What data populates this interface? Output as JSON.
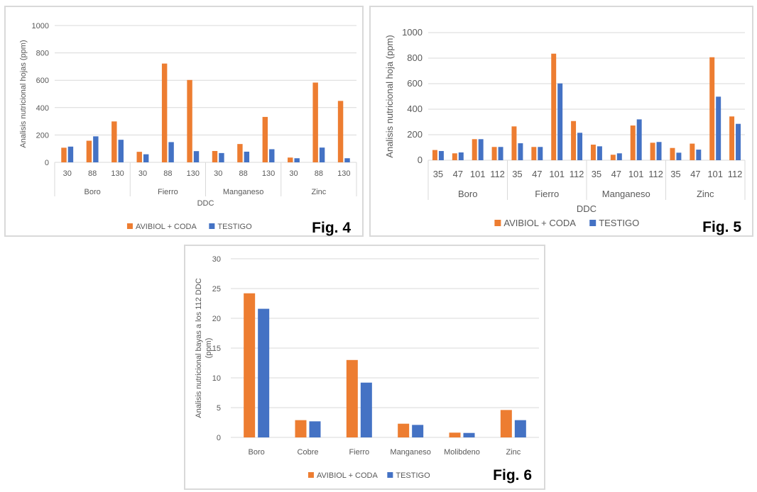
{
  "colors": {
    "series_a": "#ED7D31",
    "series_b": "#4472C4",
    "grid": "#d9d9d9",
    "text": "#595959"
  },
  "chart_data": [
    {
      "id": "fig4",
      "type": "bar",
      "figure_label": "Fig. 4",
      "title": "",
      "xlabel": "DDC",
      "ylabel": "Analisis nutricional hojas (ppm)",
      "ylim": [
        0,
        1000
      ],
      "yticks": [
        0,
        200,
        400,
        600,
        800,
        1000
      ],
      "grid": true,
      "legend_position": "bottom",
      "groups": [
        {
          "name": "Boro",
          "categories": [
            "30",
            "88",
            "130"
          ]
        },
        {
          "name": "Fierro",
          "categories": [
            "30",
            "88",
            "130"
          ]
        },
        {
          "name": "Manganeso",
          "categories": [
            "30",
            "88",
            "130"
          ]
        },
        {
          "name": "Zinc",
          "categories": [
            "30",
            "88",
            "130"
          ]
        }
      ],
      "series": [
        {
          "name": "AVIBIOL + CODA",
          "values": [
            107,
            158,
            299,
            77,
            722,
            602,
            83,
            134,
            332,
            35,
            583,
            449
          ]
        },
        {
          "name": "TESTIGO",
          "values": [
            115,
            190,
            165,
            59,
            148,
            82,
            68,
            78,
            96,
            30,
            108,
            30
          ]
        }
      ]
    },
    {
      "id": "fig5",
      "type": "bar",
      "figure_label": "Fig. 5",
      "title": "",
      "xlabel": "DDC",
      "ylabel": "Analisis nutricional hoja (ppm)",
      "ylim": [
        0,
        1000
      ],
      "yticks": [
        0,
        200,
        400,
        600,
        800,
        1000
      ],
      "grid": true,
      "legend_position": "bottom",
      "groups": [
        {
          "name": "Boro",
          "categories": [
            "35",
            "47",
            "101",
            "112"
          ]
        },
        {
          "name": "Fierro",
          "categories": [
            "35",
            "47",
            "101",
            "112"
          ]
        },
        {
          "name": "Manganeso",
          "categories": [
            "35",
            "47",
            "101",
            "112"
          ]
        },
        {
          "name": "Zinc",
          "categories": [
            "35",
            "47",
            "101",
            "112"
          ]
        }
      ],
      "series": [
        {
          "name": "AVIBIOL + CODA",
          "values": [
            80,
            54,
            165,
            104,
            265,
            104,
            835,
            307,
            122,
            43,
            272,
            137,
            96,
            130,
            807,
            343
          ]
        },
        {
          "name": "TESTIGO",
          "values": [
            72,
            61,
            165,
            104,
            133,
            104,
            602,
            215,
            109,
            54,
            320,
            143,
            59,
            83,
            498,
            285
          ]
        }
      ]
    },
    {
      "id": "fig6",
      "type": "bar",
      "figure_label": "Fig. 6",
      "title": "",
      "xlabel": "",
      "ylabel": "Analisis nutricional bayas a los 112 DDC (ppm)",
      "ylabel_lines": [
        "Analisis nutricional bayas a los 112 DDC",
        "(ppm)"
      ],
      "ylim": [
        0,
        30
      ],
      "yticks": [
        0,
        5,
        10,
        15,
        20,
        25,
        30
      ],
      "grid": true,
      "legend_position": "bottom",
      "categories": [
        "Boro",
        "Cobre",
        "Fierro",
        "Manganeso",
        "Molibdeno",
        "Zinc"
      ],
      "series": [
        {
          "name": "AVIBIOL + CODA",
          "values": [
            24.2,
            2.9,
            13.0,
            2.3,
            0.8,
            4.6
          ]
        },
        {
          "name": "TESTIGO",
          "values": [
            21.6,
            2.7,
            9.2,
            2.1,
            0.75,
            2.9
          ]
        }
      ]
    }
  ]
}
